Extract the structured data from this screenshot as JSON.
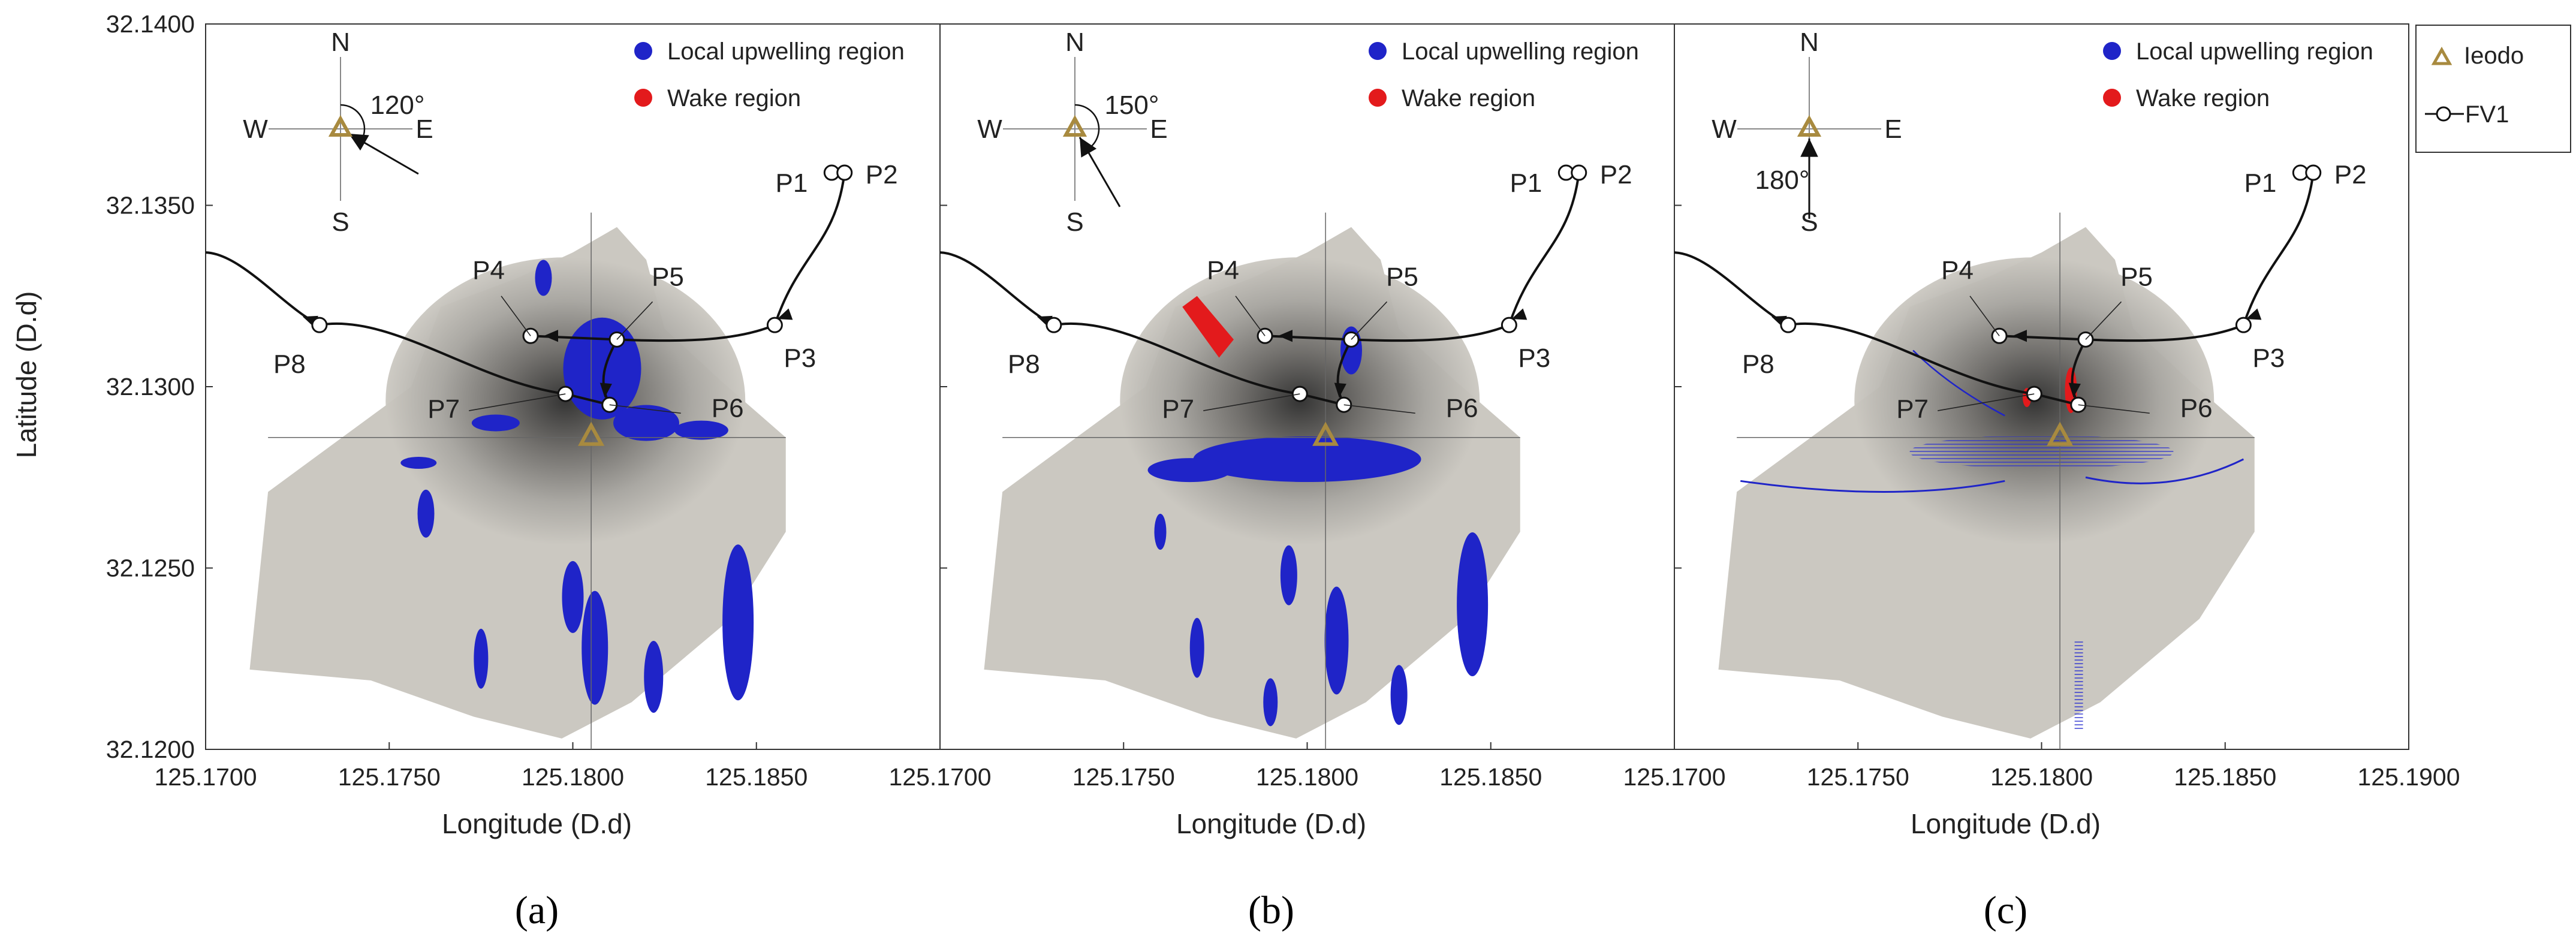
{
  "colors": {
    "upwelling": "#1f24c8",
    "wake": "#e31a1c",
    "ieodo_marker": "#a88a3f",
    "track": "#111111",
    "shading_dark": "#2d2d2d",
    "shading_light": "#cbc8c1"
  },
  "legend_box": {
    "ieodo_label": "Ieodo",
    "fv1_label": "FV1"
  },
  "chart_data": [
    {
      "panel": "a",
      "caption": "(a)",
      "type": "scatter",
      "title": "",
      "xlabel": "Longitude (D.d)",
      "ylabel": "Latitude (D.d)",
      "xlim": [
        125.17,
        125.19
      ],
      "ylim": [
        32.12,
        32.14
      ],
      "xticks": [
        "125.1700",
        "125.1750",
        "125.1800",
        "125.1850"
      ],
      "yticks": [
        "32.1400",
        "32.1350",
        "32.1300",
        "32.1250",
        "32.1200"
      ],
      "legend": [
        {
          "label": "Local upwelling region",
          "color": "#1f24c8"
        },
        {
          "label": "Wake region",
          "color": "#e31a1c"
        }
      ],
      "compass": {
        "angle_label": "120°",
        "angle": 120,
        "N": "N",
        "S": "S",
        "E": "E",
        "W": "W"
      },
      "ieodo": {
        "x": 125.1805,
        "y": 32.1286
      },
      "points": [
        {
          "label": "P1",
          "x": 125.18705,
          "y": 32.1359
        },
        {
          "label": "P2",
          "x": 125.1874,
          "y": 32.1359
        },
        {
          "label": "P3",
          "x": 125.1855,
          "y": 32.1317
        },
        {
          "label": "P4",
          "x": 125.17885,
          "y": 32.1314
        },
        {
          "label": "P5",
          "x": 125.1812,
          "y": 32.1313
        },
        {
          "label": "P6",
          "x": 125.181,
          "y": 32.1295
        },
        {
          "label": "P7",
          "x": 125.1798,
          "y": 32.1298
        },
        {
          "label": "P8",
          "x": 125.1731,
          "y": 32.1317
        }
      ]
    },
    {
      "panel": "b",
      "caption": "(b)",
      "type": "scatter",
      "title": "",
      "xlabel": "Longitude (D.d)",
      "ylabel": "",
      "xlim": [
        125.17,
        125.19
      ],
      "ylim": [
        32.12,
        32.14
      ],
      "xticks": [
        "125.1700",
        "125.1750",
        "125.1800",
        "125.1850"
      ],
      "yticks": [],
      "legend": [
        {
          "label": "Local upwelling region",
          "color": "#1f24c8"
        },
        {
          "label": "Wake region",
          "color": "#e31a1c"
        }
      ],
      "compass": {
        "angle_label": "150°",
        "angle": 150,
        "N": "N",
        "S": "S",
        "E": "E",
        "W": "W"
      },
      "ieodo": {
        "x": 125.1805,
        "y": 32.1286
      },
      "points": [
        {
          "label": "P1",
          "x": 125.18705,
          "y": 32.1359
        },
        {
          "label": "P2",
          "x": 125.1874,
          "y": 32.1359
        },
        {
          "label": "P3",
          "x": 125.1855,
          "y": 32.1317
        },
        {
          "label": "P4",
          "x": 125.17885,
          "y": 32.1314
        },
        {
          "label": "P5",
          "x": 125.1812,
          "y": 32.1313
        },
        {
          "label": "P6",
          "x": 125.181,
          "y": 32.1295
        },
        {
          "label": "P7",
          "x": 125.1798,
          "y": 32.1298
        },
        {
          "label": "P8",
          "x": 125.1731,
          "y": 32.1317
        }
      ]
    },
    {
      "panel": "c",
      "caption": "(c)",
      "type": "scatter",
      "title": "",
      "xlabel": "Longitude (D.d)",
      "ylabel": "",
      "xlim": [
        125.17,
        125.19
      ],
      "ylim": [
        32.12,
        32.14
      ],
      "xticks": [
        "125.1700",
        "125.1750",
        "125.1800",
        "125.1850",
        "125.1900"
      ],
      "yticks": [],
      "legend": [
        {
          "label": "Local upwelling region",
          "color": "#1f24c8"
        },
        {
          "label": "Wake region",
          "color": "#e31a1c"
        }
      ],
      "compass": {
        "angle_label": "180°",
        "angle": 180,
        "N": "N",
        "S": "S",
        "E": "E",
        "W": "W"
      },
      "ieodo": {
        "x": 125.1805,
        "y": 32.1286
      },
      "points": [
        {
          "label": "P1",
          "x": 125.18705,
          "y": 32.1359
        },
        {
          "label": "P2",
          "x": 125.1874,
          "y": 32.1359
        },
        {
          "label": "P3",
          "x": 125.1855,
          "y": 32.1317
        },
        {
          "label": "P4",
          "x": 125.17885,
          "y": 32.1314
        },
        {
          "label": "P5",
          "x": 125.1812,
          "y": 32.1313
        },
        {
          "label": "P6",
          "x": 125.181,
          "y": 32.1295
        },
        {
          "label": "P7",
          "x": 125.1798,
          "y": 32.1298
        },
        {
          "label": "P8",
          "x": 125.1731,
          "y": 32.1317
        }
      ]
    }
  ]
}
